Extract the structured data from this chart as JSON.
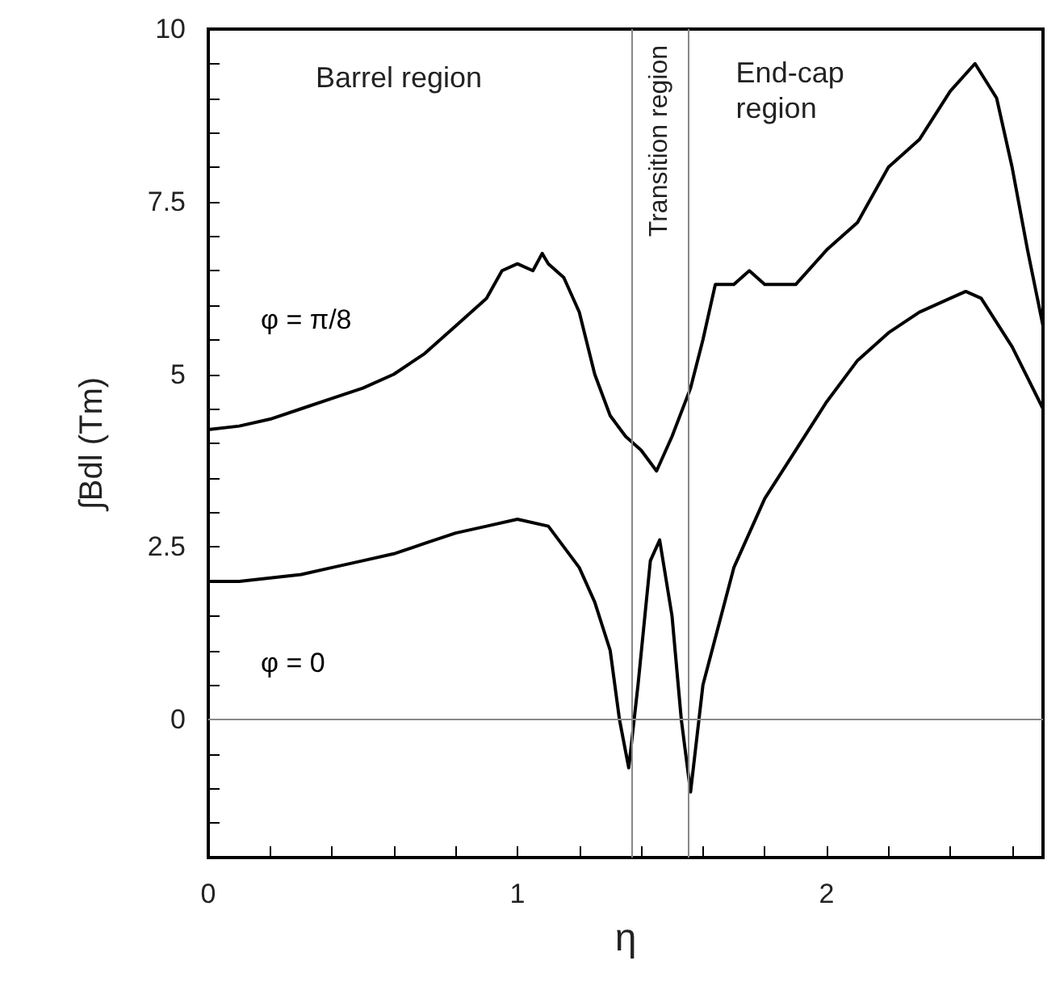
{
  "chart_data": {
    "type": "line",
    "xlabel": "η",
    "ylabel": "∫Bdl (Tm)",
    "series": [
      {
        "name": "φ = π/8",
        "color": "#000000",
        "x": [
          0,
          0.1,
          0.2,
          0.3,
          0.4,
          0.5,
          0.6,
          0.7,
          0.8,
          0.9,
          0.95,
          1.0,
          1.05,
          1.08,
          1.1,
          1.15,
          1.2,
          1.25,
          1.3,
          1.35,
          1.4,
          1.45,
          1.5,
          1.56,
          1.6,
          1.64,
          1.7,
          1.75,
          1.8,
          1.9,
          2.0,
          2.1,
          2.2,
          2.3,
          2.4,
          2.48,
          2.55,
          2.6,
          2.65,
          2.7
        ],
        "values": [
          4.2,
          4.25,
          4.35,
          4.5,
          4.65,
          4.8,
          5.0,
          5.3,
          5.7,
          6.1,
          6.5,
          6.6,
          6.5,
          6.75,
          6.6,
          6.4,
          5.9,
          5.0,
          4.4,
          4.1,
          3.9,
          3.6,
          4.1,
          4.8,
          5.5,
          6.3,
          6.3,
          6.5,
          6.3,
          6.3,
          6.8,
          7.2,
          8.0,
          8.4,
          9.1,
          9.5,
          9.0,
          8.0,
          6.8,
          5.7
        ]
      },
      {
        "name": "φ = 0",
        "color": "#000000",
        "x": [
          0,
          0.1,
          0.2,
          0.3,
          0.4,
          0.5,
          0.6,
          0.7,
          0.8,
          0.9,
          1.0,
          1.1,
          1.2,
          1.25,
          1.3,
          1.33,
          1.36,
          1.39,
          1.43,
          1.46,
          1.5,
          1.53,
          1.56,
          1.6,
          1.7,
          1.8,
          1.9,
          2.0,
          2.1,
          2.2,
          2.3,
          2.4,
          2.45,
          2.5,
          2.6,
          2.7
        ],
        "values": [
          2.0,
          2.0,
          2.05,
          2.1,
          2.2,
          2.3,
          2.4,
          2.55,
          2.7,
          2.8,
          2.9,
          2.8,
          2.2,
          1.7,
          1.0,
          0,
          -0.7,
          0.5,
          2.3,
          2.6,
          1.5,
          0,
          -1.05,
          0.5,
          2.2,
          3.2,
          3.9,
          4.6,
          5.2,
          5.6,
          5.9,
          6.1,
          6.2,
          6.1,
          5.4,
          4.5
        ]
      }
    ],
    "xlim": [
      0,
      2.7
    ],
    "xticks": [
      0,
      {
        "value": 0.2,
        "label": null
      },
      {
        "value": 0.4,
        "label": null
      },
      {
        "value": 0.6,
        "label": null
      },
      {
        "value": 0.8,
        "label": null
      },
      1,
      {
        "value": 1.2,
        "label": null
      },
      {
        "value": 1.4,
        "label": null
      },
      {
        "value": 1.6,
        "label": null
      },
      {
        "value": 1.8,
        "label": null
      },
      2,
      {
        "value": 2.2,
        "label": null
      },
      {
        "value": 2.4,
        "label": null
      },
      {
        "value": 2.6,
        "label": null
      }
    ],
    "ylim": [
      -2,
      10
    ],
    "yticks": [
      {
        "value": -1.5,
        "label": null
      },
      {
        "value": -1,
        "label": null
      },
      {
        "value": -0.5,
        "label": null
      },
      0,
      {
        "value": 0.5,
        "label": null
      },
      {
        "value": 1,
        "label": null
      },
      {
        "value": 1.5,
        "label": null
      },
      {
        "value": 2,
        "label": null
      },
      2.5,
      {
        "value": 3,
        "label": null
      },
      {
        "value": 3.5,
        "label": null
      },
      {
        "value": 4,
        "label": null
      },
      {
        "value": 4.5,
        "label": null
      },
      5,
      {
        "value": 5.5,
        "label": null
      },
      {
        "value": 6,
        "label": null
      },
      {
        "value": 6.5,
        "label": null
      },
      {
        "value": 7,
        "label": null
      },
      7.5,
      {
        "value": 8,
        "label": null
      },
      {
        "value": 8.5,
        "label": null
      },
      {
        "value": 9,
        "label": null
      },
      {
        "value": 9.5,
        "label": null
      },
      10
    ],
    "ref_lines": [
      {
        "axis": "y",
        "value": 0,
        "color": "#888888"
      },
      {
        "axis": "x",
        "value": 1.37,
        "color": "#888888"
      },
      {
        "axis": "x",
        "value": 1.55,
        "color": "#888888"
      }
    ],
    "annotations": [
      "Barrel region",
      "Transition region",
      "End-cap region"
    ],
    "grid": false,
    "legend": false,
    "marker": "none",
    "line_style": "solid"
  }
}
